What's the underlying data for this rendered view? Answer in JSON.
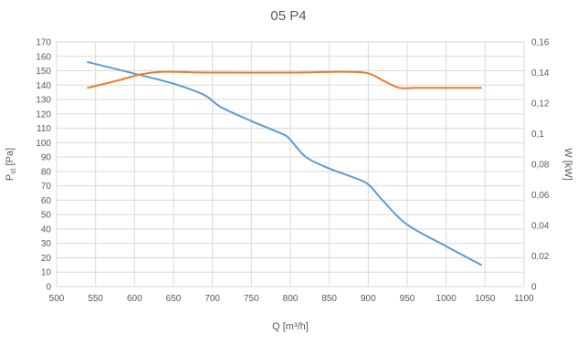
{
  "chart_data": {
    "type": "line",
    "title": "05 P4",
    "xlabel": "Q [m³/h]",
    "ylabel": "P",
    "ylabel_sub": "st",
    "ylabel_unit": " [Pa]",
    "y2label": "W [kW]",
    "xlim": [
      500,
      1100
    ],
    "ylim": [
      0,
      170
    ],
    "y2lim": [
      0,
      0.16
    ],
    "xticks": [
      "500",
      "550",
      "600",
      "650",
      "700",
      "750",
      "800",
      "850",
      "900",
      "950",
      "1000",
      "1050",
      "1100"
    ],
    "yticks": [
      "0",
      "10",
      "20",
      "30",
      "40",
      "50",
      "60",
      "70",
      "80",
      "90",
      "100",
      "110",
      "120",
      "130",
      "140",
      "150",
      "160",
      "170"
    ],
    "y2ticks": [
      "0",
      "0,02",
      "0,04",
      "0,06",
      "0,08",
      "0,1",
      "0,12",
      "0,14",
      "0,16"
    ],
    "grid": true,
    "legend": "none",
    "series": [
      {
        "axis": "left",
        "color": "#5b9bd5",
        "x": [
          540,
          600,
          650,
          690,
          710,
          750,
          790,
          800,
          820,
          850,
          880,
          900,
          920,
          950,
          1000,
          1045
        ],
        "values": [
          156,
          148,
          141,
          133,
          125,
          115,
          106,
          102,
          90,
          82,
          76,
          71,
          59,
          43,
          28,
          15
        ]
      },
      {
        "axis": "right",
        "color": "#ed7d31",
        "x": [
          540,
          580,
          610,
          640,
          700,
          800,
          870,
          900,
          920,
          940,
          960,
          1000,
          1045
        ],
        "values": [
          0.13,
          0.135,
          0.139,
          0.1405,
          0.14,
          0.14,
          0.1405,
          0.1395,
          0.1345,
          0.13,
          0.13,
          0.13,
          0.13
        ]
      }
    ]
  }
}
